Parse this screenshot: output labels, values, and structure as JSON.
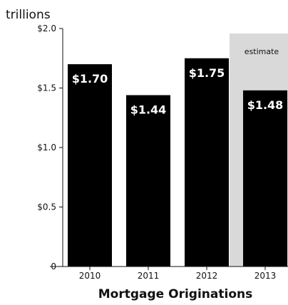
{
  "chart_data": {
    "type": "bar",
    "title": "Mortgage Originations",
    "unit_label": "trillions",
    "categories": [
      "2010",
      "2011",
      "2012",
      "2013"
    ],
    "values": [
      1.7,
      1.44,
      1.75,
      1.48
    ],
    "data_labels": [
      "$1.70",
      "$1.44",
      "$1.75",
      "$1.48"
    ],
    "y_ticks": [
      {
        "value": 0,
        "label": "0"
      },
      {
        "value": 0.5,
        "label": "$0.5"
      },
      {
        "value": 1.0,
        "label": "$1.0"
      },
      {
        "value": 1.5,
        "label": "$1.5"
      },
      {
        "value": 2.0,
        "label": "$2.0"
      }
    ],
    "ylim": [
      0,
      2.0
    ],
    "grid": false,
    "bar_color": "#000000",
    "annotation": {
      "category": "2013",
      "text": "estimate",
      "shade_color": "#d9d9d9"
    }
  }
}
